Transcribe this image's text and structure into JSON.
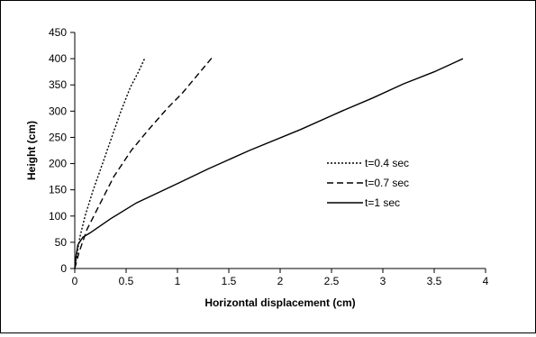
{
  "chart_data": {
    "type": "line",
    "title": "",
    "xlabel": "Horizontal displacement (cm)",
    "ylabel": "Height (cm)",
    "xlim": [
      0,
      4
    ],
    "ylim": [
      0,
      450
    ],
    "xticks": [
      "0",
      "0.5",
      "1",
      "1.5",
      "2",
      "2.5",
      "3",
      "3.5",
      "4"
    ],
    "yticks": [
      "0",
      "50",
      "100",
      "150",
      "200",
      "250",
      "300",
      "350",
      "400",
      "450"
    ],
    "grid": false,
    "legend_position": "right",
    "series": [
      {
        "name": "t=0.4 sec",
        "style": "dotted",
        "color": "#000000",
        "x": [
          0,
          0.02,
          0.05,
          0.1,
          0.18,
          0.27,
          0.36,
          0.45,
          0.54,
          0.62,
          0.68
        ],
        "y": [
          0,
          25,
          60,
          100,
          150,
          200,
          250,
          300,
          345,
          375,
          400
        ]
      },
      {
        "name": "t=0.7 sec",
        "style": "dashed",
        "color": "#000000",
        "x": [
          0,
          0.04,
          0.12,
          0.25,
          0.38,
          0.55,
          0.72,
          0.9,
          1.05,
          1.2,
          1.35
        ],
        "y": [
          0,
          30,
          75,
          125,
          175,
          225,
          265,
          305,
          335,
          370,
          405
        ]
      },
      {
        "name": "t=1 sec",
        "style": "solid",
        "color": "#000000",
        "x": [
          0,
          0.01,
          0.03,
          0.08,
          0.15,
          0.35,
          0.6,
          1.0,
          1.3,
          1.7,
          2.2,
          2.6,
          2.9,
          3.2,
          3.5,
          3.78
        ],
        "y": [
          0,
          20,
          45,
          60,
          68,
          95,
          125,
          162,
          190,
          225,
          265,
          300,
          325,
          352,
          375,
          400
        ]
      }
    ]
  }
}
